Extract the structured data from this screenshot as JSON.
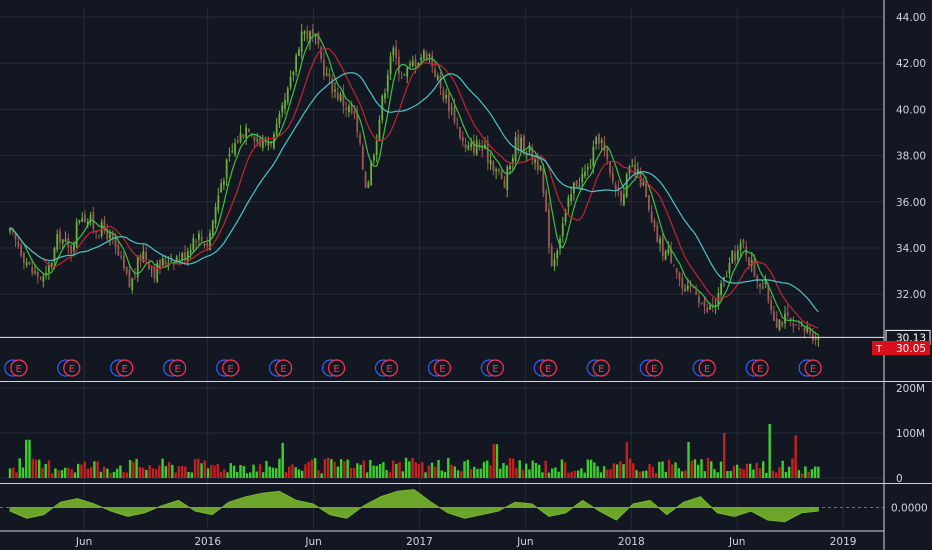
{
  "colors": {
    "background": "#131722",
    "grid": "#262b3a",
    "axis_text": "#d1d4dc",
    "candle_up": "#6fae3f",
    "candle_down": "#9b5a53",
    "ma_short": "#3fc23f",
    "ma_mid": "#c0262f",
    "ma_long": "#4fc4c9",
    "volume_up": "#3ecf2e",
    "volume_down": "#c81f1f",
    "oscillator": "#7cbe2c",
    "earnings_blue": "#2962ff",
    "earnings_red": "#ff3355",
    "last_price_tag": "#d50f1b"
  },
  "chart_data": [
    {
      "type": "candlestick",
      "panel": "price",
      "x_ticks": [
        "Jun",
        "2016",
        "Jun",
        "2017",
        "Jun",
        "2018",
        "Jun",
        "2019"
      ],
      "y_ticks": [
        "44.00",
        "42.00",
        "40.00",
        "38.00",
        "36.00",
        "34.00",
        "32.00"
      ],
      "ylim": [
        29.0,
        44.8
      ],
      "grid": true,
      "price_line": {
        "value": 30.13,
        "label": "30.13"
      },
      "last_price": {
        "symbol": "T",
        "value": 30.05,
        "label": "30.05"
      },
      "close_series": {
        "name": "",
        "x_months": [
          0,
          0.6,
          1.2,
          2,
          2.8,
          3.4,
          4,
          4.8,
          5.5,
          6.2,
          6.8,
          7.5,
          8.2,
          9,
          9.8,
          10.5,
          11.2,
          12,
          12.8,
          13.5,
          14.2,
          15,
          15.8,
          16.5,
          17.2,
          18,
          18.8,
          19.5,
          20.2,
          20.9,
          21.6,
          22.3,
          23,
          23.7,
          24.4,
          25.1,
          25.8,
          26.5,
          27.3,
          28,
          28.7,
          29.4,
          30,
          30.7,
          31.3,
          32,
          32.7,
          33.4,
          34,
          34.6,
          35.2,
          35.8,
          36.4,
          37,
          37.6,
          38.2,
          38.8,
          39.4,
          40,
          40.5,
          41,
          41.6,
          42.2,
          42.8,
          43.4,
          44,
          44.6,
          45.2,
          45.8
        ],
        "close": [
          34.6,
          34.0,
          33.0,
          32.6,
          34.6,
          33.8,
          35.6,
          34.9,
          34.7,
          33.5,
          32.3,
          33.9,
          33.0,
          33.6,
          33.6,
          34.6,
          34.2,
          37.0,
          38.6,
          39.4,
          38.5,
          38.8,
          40.8,
          43.4,
          43.1,
          41.3,
          40.4,
          39.7,
          36.6,
          39.5,
          42.6,
          41.4,
          42.2,
          42.5,
          40.9,
          39.9,
          38.2,
          38.5,
          37.8,
          36.7,
          38.7,
          38.2,
          37.6,
          33.3,
          35.0,
          36.8,
          37.3,
          38.9,
          37.1,
          36.3,
          37.4,
          36.9,
          34.8,
          33.9,
          33.6,
          31.9,
          32.4,
          31.2,
          31.6,
          32.7,
          33.7,
          34.1,
          32.9,
          32.2,
          30.9,
          30.9,
          30.3,
          30.5,
          30.1
        ]
      }
    },
    {
      "type": "bar",
      "panel": "volume",
      "y_ticks": [
        "200M",
        "100M",
        "0"
      ],
      "ylim": [
        0,
        200
      ],
      "unit": "M",
      "typical_range": [
        10,
        45
      ],
      "notable_spikes": [
        {
          "x_month": 1.0,
          "value": 85
        },
        {
          "x_month": 15.5,
          "value": 78
        },
        {
          "x_month": 27.5,
          "value": 75
        },
        {
          "x_month": 35.0,
          "value": 80
        },
        {
          "x_month": 38.5,
          "value": 80
        },
        {
          "x_month": 40.5,
          "value": 100
        },
        {
          "x_month": 43.0,
          "value": 120
        },
        {
          "x_month": 44.5,
          "value": 95
        }
      ]
    },
    {
      "type": "area",
      "panel": "oscillator",
      "y_ticks": [
        "0.0000"
      ],
      "ylim": [
        -1.0,
        1.0
      ],
      "values": [
        -0.2,
        -0.6,
        -0.4,
        0.3,
        0.5,
        0.2,
        -0.2,
        -0.5,
        -0.3,
        0.1,
        0.4,
        -0.2,
        -0.4,
        0.3,
        0.6,
        0.8,
        0.9,
        0.4,
        0.2,
        -0.4,
        -0.6,
        0.1,
        0.6,
        0.9,
        1.0,
        0.3,
        -0.3,
        -0.6,
        -0.4,
        -0.2,
        0.3,
        0.2,
        -0.5,
        -0.3,
        0.4,
        -0.2,
        -0.7,
        0.2,
        0.4,
        -0.4,
        0.3,
        0.6,
        -0.3,
        -0.5,
        -0.2,
        -0.7,
        -0.8,
        -0.3,
        -0.2
      ]
    }
  ],
  "earnings_markers": {
    "label": "E",
    "x_months": [
      0.5,
      3.5,
      6.5,
      9.5,
      12.5,
      15.5,
      18.5,
      21.5,
      24.5,
      27.5,
      30.5,
      33.5,
      36.5,
      39.5,
      42.5,
      45.5
    ]
  }
}
